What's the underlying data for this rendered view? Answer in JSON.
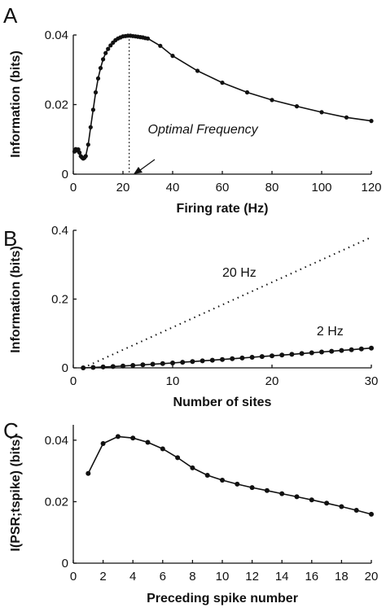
{
  "chart_data": [
    {
      "panel": "A",
      "type": "line",
      "xlabel": "Firing rate (Hz)",
      "ylabel": "Information (bits)",
      "xlim": [
        0,
        120
      ],
      "ylim": [
        0,
        0.04
      ],
      "xticks": [
        "0",
        "20",
        "40",
        "60",
        "80",
        "100",
        "120"
      ],
      "yticks": [
        "0",
        "0.02",
        "0.04"
      ],
      "series": [
        {
          "x": [
            0.5,
            1,
            1.5,
            2,
            2.5,
            3,
            3.5,
            4,
            4.5,
            5,
            6,
            7,
            8,
            9,
            10,
            11,
            12,
            13,
            14,
            15,
            16,
            17,
            18,
            19,
            20,
            21,
            22,
            23,
            24,
            25,
            26,
            27,
            28,
            29,
            30,
            35,
            40,
            50,
            60,
            70,
            80,
            90,
            100,
            110,
            120
          ],
          "values": [
            0.0065,
            0.0072,
            0.0068,
            0.0071,
            0.0062,
            0.0052,
            0.0048,
            0.0045,
            0.0047,
            0.0052,
            0.0085,
            0.0135,
            0.0185,
            0.0235,
            0.0275,
            0.0305,
            0.033,
            0.0348,
            0.036,
            0.037,
            0.0378,
            0.0385,
            0.039,
            0.0393,
            0.0396,
            0.0397,
            0.0398,
            0.0398,
            0.0397,
            0.0396,
            0.0395,
            0.0394,
            0.0393,
            0.0391,
            0.039,
            0.0369,
            0.034,
            0.0297,
            0.0263,
            0.0235,
            0.0213,
            0.0195,
            0.0178,
            0.0163,
            0.0153
          ]
        }
      ],
      "annotations": [
        {
          "text": "Optimal Frequency",
          "x": 30,
          "y": 0.0117
        }
      ],
      "reference_line_x": 22.5
    },
    {
      "panel": "B",
      "type": "line",
      "xlabel": "Number of sites",
      "ylabel": "Information (bits)",
      "xlim": [
        0,
        30
      ],
      "ylim": [
        0,
        0.4
      ],
      "xticks": [
        "0",
        "10",
        "20",
        "30"
      ],
      "yticks": [
        "0",
        "0.2",
        "0.4"
      ],
      "series": [
        {
          "name": "20 Hz",
          "style": "dotted",
          "x": [
            1,
            30
          ],
          "values": [
            0,
            0.38
          ]
        },
        {
          "name": "2 Hz",
          "style": "solid-markers",
          "x": [
            1,
            2,
            3,
            4,
            5,
            6,
            7,
            8,
            9,
            10,
            11,
            12,
            13,
            14,
            15,
            16,
            17,
            18,
            19,
            20,
            21,
            22,
            23,
            24,
            25,
            26,
            27,
            28,
            29,
            30
          ],
          "values": [
            0.0,
            0.0012,
            0.0025,
            0.0038,
            0.0054,
            0.0071,
            0.0088,
            0.0106,
            0.0124,
            0.0143,
            0.0163,
            0.0183,
            0.0203,
            0.0223,
            0.0244,
            0.0265,
            0.0286,
            0.0307,
            0.0329,
            0.035,
            0.0372,
            0.0394,
            0.0416,
            0.0438,
            0.0461,
            0.0483,
            0.0506,
            0.0528,
            0.0551,
            0.0575
          ]
        }
      ],
      "annotations": [
        {
          "text": "20 Hz",
          "x": 15,
          "y": 0.265
        },
        {
          "text": "2 Hz",
          "x": 24.5,
          "y": 0.095
        }
      ]
    },
    {
      "panel": "C",
      "type": "line",
      "xlabel": "Preceding spike number",
      "ylabel": "I(PSR;tspike) (bits)",
      "xlim": [
        0,
        20
      ],
      "ylim": [
        0,
        0.045
      ],
      "xticks": [
        "0",
        "2",
        "4",
        "6",
        "8",
        "10",
        "12",
        "14",
        "16",
        "18",
        "20"
      ],
      "yticks": [
        "0",
        "0.02",
        "0.04"
      ],
      "series": [
        {
          "x": [
            1,
            2,
            3,
            4,
            5,
            6,
            7,
            8,
            9,
            10,
            11,
            12,
            13,
            14,
            15,
            16,
            17,
            18,
            19,
            20
          ],
          "values": [
            0.0292,
            0.0389,
            0.0412,
            0.0407,
            0.0393,
            0.0372,
            0.0343,
            0.031,
            0.0286,
            0.027,
            0.0257,
            0.0246,
            0.0236,
            0.0226,
            0.0216,
            0.0206,
            0.0195,
            0.0184,
            0.0172,
            0.0159
          ]
        }
      ]
    }
  ]
}
